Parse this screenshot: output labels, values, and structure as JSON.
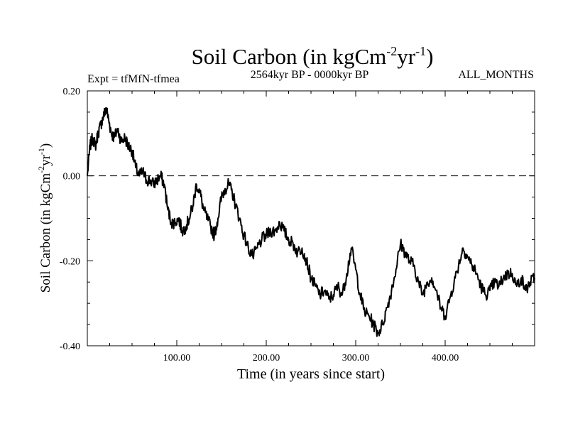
{
  "chart_data": {
    "type": "line",
    "title": {
      "main": "Soil Carbon (in kgCm",
      "sup1": "-2",
      "mid": "yr",
      "sup2": "-1",
      "close": ")"
    },
    "subtitle_left": "Expt = tfMfN-tfmea",
    "subtitle_center": "2564kyr BP - 0000kyr BP",
    "subtitle_right": "ALL_MONTHS",
    "xlabel": "Time (in years since start)",
    "ylabel": {
      "main": "Soil Carbon (in kgCm",
      "sup1": "-2",
      "mid": "yr",
      "sup2": "-1",
      "close": ")"
    },
    "xlim": [
      0,
      500
    ],
    "ylim": [
      -0.4,
      0.2
    ],
    "x_ticks": [
      {
        "value": 100,
        "label": "100.00"
      },
      {
        "value": 200,
        "label": "200.00"
      },
      {
        "value": 300,
        "label": "300.00"
      },
      {
        "value": 400,
        "label": "400.00"
      }
    ],
    "y_ticks": [
      {
        "value": 0.2,
        "label": "0.20"
      },
      {
        "value": 0.0,
        "label": "0.00"
      },
      {
        "value": -0.2,
        "label": "-0.20"
      },
      {
        "value": -0.4,
        "label": "-0.40"
      }
    ],
    "zero_line": 0.0,
    "series": [
      {
        "name": "Soil Carbon",
        "x": [
          0,
          3,
          6,
          9,
          12,
          15,
          18,
          21,
          24,
          27,
          30,
          34,
          38,
          42,
          46,
          50,
          54,
          58,
          62,
          66,
          70,
          74,
          78,
          82,
          86,
          90,
          94,
          98,
          102,
          106,
          110,
          114,
          118,
          122,
          126,
          130,
          134,
          138,
          142,
          146,
          150,
          154,
          158,
          162,
          166,
          170,
          175,
          180,
          185,
          190,
          195,
          200,
          205,
          210,
          215,
          220,
          225,
          230,
          235,
          240,
          245,
          250,
          255,
          260,
          265,
          270,
          275,
          280,
          285,
          290,
          295,
          300,
          305,
          310,
          315,
          320,
          325,
          330,
          335,
          340,
          345,
          350,
          355,
          360,
          365,
          370,
          375,
          380,
          385,
          390,
          395,
          400,
          405,
          410,
          415,
          420,
          425,
          430,
          435,
          440,
          445,
          450,
          455,
          460,
          465,
          470,
          475,
          480,
          485,
          490,
          495,
          500
        ],
        "y": [
          0.0,
          0.07,
          0.09,
          0.07,
          0.1,
          0.12,
          0.14,
          0.16,
          0.13,
          0.1,
          0.09,
          0.11,
          0.08,
          0.09,
          0.07,
          0.06,
          0.02,
          0.0,
          0.01,
          -0.01,
          -0.01,
          -0.02,
          -0.01,
          0.0,
          -0.02,
          -0.08,
          -0.11,
          -0.11,
          -0.1,
          -0.13,
          -0.12,
          -0.1,
          -0.07,
          -0.02,
          -0.04,
          -0.08,
          -0.1,
          -0.12,
          -0.14,
          -0.1,
          -0.05,
          -0.03,
          -0.02,
          -0.04,
          -0.07,
          -0.1,
          -0.14,
          -0.17,
          -0.19,
          -0.17,
          -0.15,
          -0.14,
          -0.13,
          -0.13,
          -0.11,
          -0.13,
          -0.15,
          -0.16,
          -0.18,
          -0.17,
          -0.2,
          -0.24,
          -0.26,
          -0.28,
          -0.27,
          -0.29,
          -0.28,
          -0.26,
          -0.28,
          -0.23,
          -0.17,
          -0.22,
          -0.28,
          -0.32,
          -0.33,
          -0.35,
          -0.37,
          -0.35,
          -0.31,
          -0.27,
          -0.22,
          -0.16,
          -0.18,
          -0.2,
          -0.21,
          -0.25,
          -0.28,
          -0.25,
          -0.24,
          -0.27,
          -0.31,
          -0.33,
          -0.29,
          -0.25,
          -0.21,
          -0.17,
          -0.19,
          -0.21,
          -0.23,
          -0.26,
          -0.28,
          -0.27,
          -0.25,
          -0.26,
          -0.24,
          -0.23,
          -0.23,
          -0.26,
          -0.24,
          -0.27,
          -0.25,
          -0.24
        ]
      }
    ]
  }
}
